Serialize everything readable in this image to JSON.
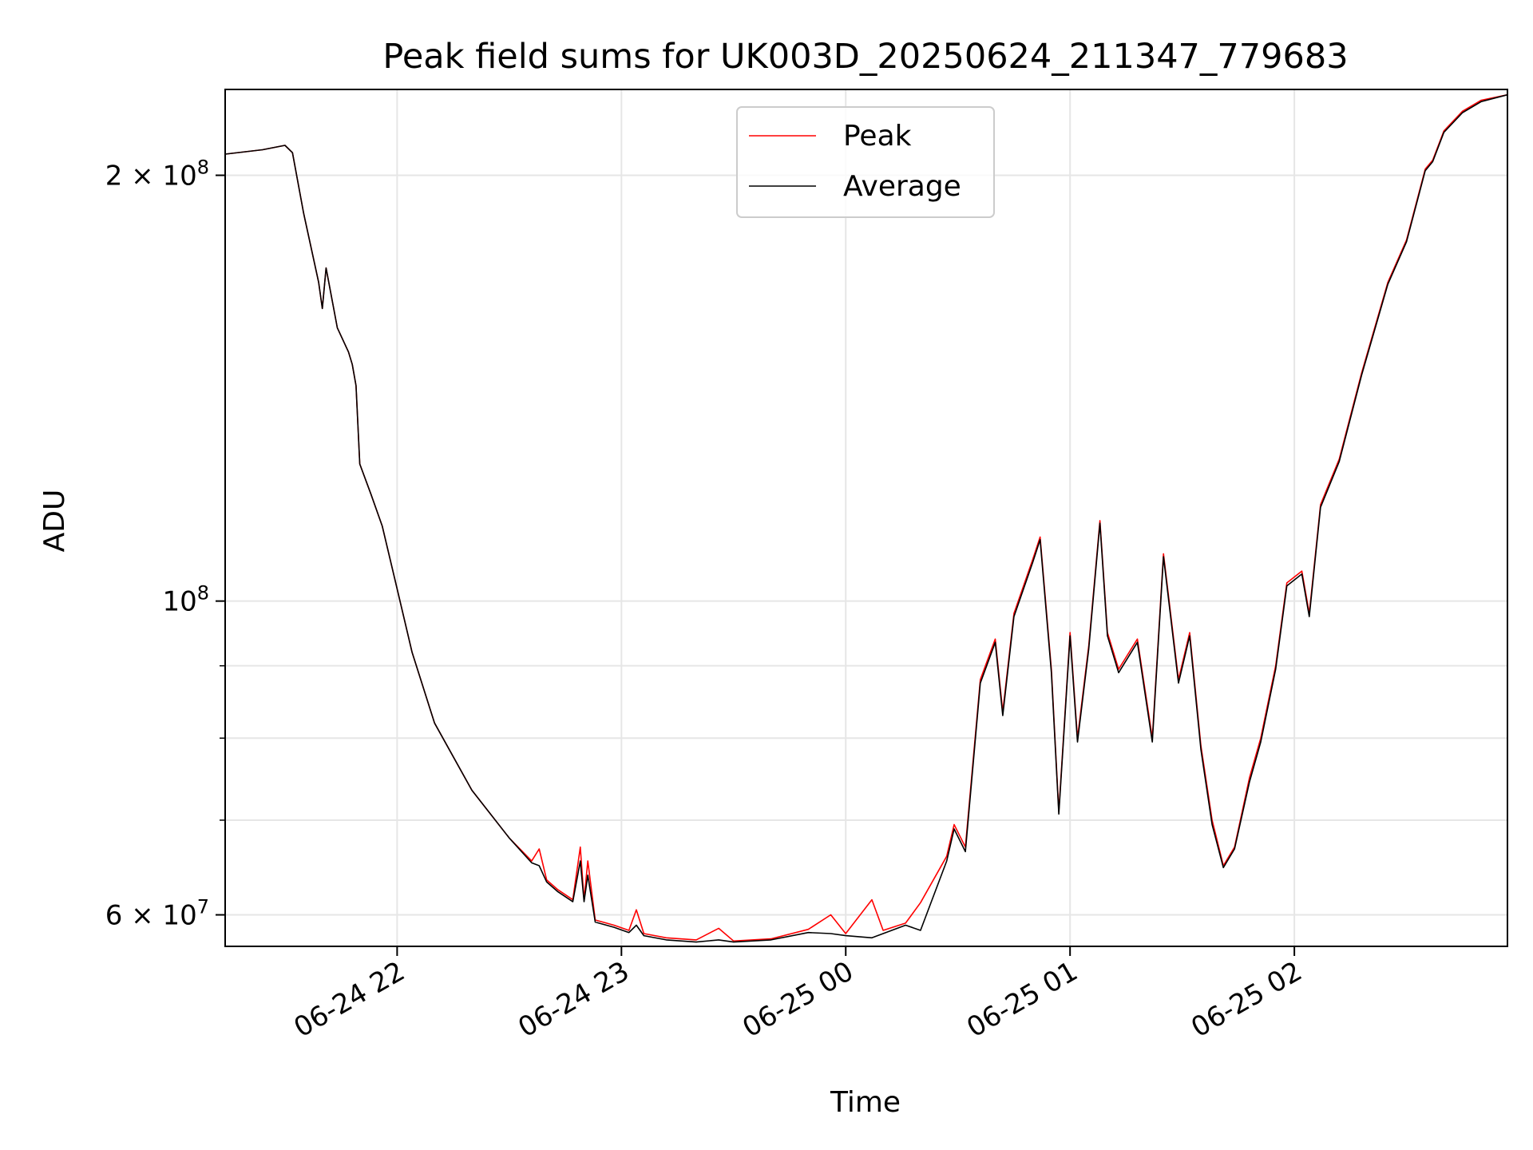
{
  "chart_data": {
    "type": "line",
    "title": "Peak field sums for UK003D_20250624_211347_779683",
    "xlabel": "Time",
    "ylabel": "ADU",
    "yscale": "log",
    "ylim": [
      57000000,
      230000000
    ],
    "xlim": [
      "2025-06-24 21:14",
      "2025-06-25 02:57"
    ],
    "grid": true,
    "legend_position": "top-center",
    "x_ticks": [
      {
        "value": "2025-06-24 22:00",
        "label": "06-24 22"
      },
      {
        "value": "2025-06-24 23:00",
        "label": "06-24 23"
      },
      {
        "value": "2025-06-25 00:00",
        "label": "06-25 00"
      },
      {
        "value": "2025-06-25 01:00",
        "label": "06-25 01"
      },
      {
        "value": "2025-06-25 02:00",
        "label": "06-25 02"
      }
    ],
    "y_ticks": [
      {
        "value": 60000000,
        "base": "6",
        "exp": "7"
      },
      {
        "value": 100000000,
        "base": "",
        "exp": "8"
      },
      {
        "value": 200000000,
        "base": "2",
        "exp": "8"
      }
    ],
    "y_minor_ticks": [
      70000000,
      80000000,
      90000000
    ],
    "series": [
      {
        "name": "Peak",
        "color": "#ff0000",
        "points": [
          [
            "2025-06-24 21:14",
            207000000
          ],
          [
            "2025-06-24 21:24",
            208500000
          ],
          [
            "2025-06-24 21:30",
            210000000
          ],
          [
            "2025-06-24 21:32",
            207500000
          ],
          [
            "2025-06-24 21:35",
            188000000
          ],
          [
            "2025-06-24 21:39",
            168000000
          ],
          [
            "2025-06-24 21:40",
            161000000
          ],
          [
            "2025-06-24 21:41",
            172000000
          ],
          [
            "2025-06-24 21:44",
            156000000
          ],
          [
            "2025-06-24 21:47",
            150000000
          ],
          [
            "2025-06-24 21:48",
            147000000
          ],
          [
            "2025-06-24 21:49",
            142000000
          ],
          [
            "2025-06-24 21:50",
            125000000
          ],
          [
            "2025-06-24 21:53",
            119000000
          ],
          [
            "2025-06-24 21:56",
            113000000
          ],
          [
            "2025-06-24 22:00",
            102000000
          ],
          [
            "2025-06-24 22:04",
            92000000
          ],
          [
            "2025-06-24 22:10",
            82000000
          ],
          [
            "2025-06-24 22:20",
            73500000
          ],
          [
            "2025-06-24 22:30",
            68000000
          ],
          [
            "2025-06-24 22:36",
            65500000
          ],
          [
            "2025-06-24 22:38",
            66800000
          ],
          [
            "2025-06-24 22:40",
            63500000
          ],
          [
            "2025-06-24 22:43",
            62500000
          ],
          [
            "2025-06-24 22:47",
            61500000
          ],
          [
            "2025-06-24 22:49",
            67000000
          ],
          [
            "2025-06-24 22:50",
            61500000
          ],
          [
            "2025-06-24 22:51",
            65500000
          ],
          [
            "2025-06-24 22:53",
            59500000
          ],
          [
            "2025-06-24 22:58",
            59000000
          ],
          [
            "2025-06-24 23:02",
            58500000
          ],
          [
            "2025-06-24 23:04",
            60500000
          ],
          [
            "2025-06-24 23:06",
            58200000
          ],
          [
            "2025-06-24 23:12",
            57800000
          ],
          [
            "2025-06-24 23:20",
            57600000
          ],
          [
            "2025-06-24 23:26",
            58700000
          ],
          [
            "2025-06-24 23:30",
            57500000
          ],
          [
            "2025-06-24 23:40",
            57700000
          ],
          [
            "2025-06-24 23:50",
            58600000
          ],
          [
            "2025-06-24 23:56",
            60000000
          ],
          [
            "2025-06-25 00:00",
            58200000
          ],
          [
            "2025-06-25 00:07",
            61500000
          ],
          [
            "2025-06-25 00:10",
            58500000
          ],
          [
            "2025-06-25 00:16",
            59200000
          ],
          [
            "2025-06-25 00:20",
            61200000
          ],
          [
            "2025-06-25 00:27",
            66000000
          ],
          [
            "2025-06-25 00:29",
            69500000
          ],
          [
            "2025-06-25 00:32",
            67000000
          ],
          [
            "2025-06-25 00:36",
            88000000
          ],
          [
            "2025-06-25 00:40",
            94000000
          ],
          [
            "2025-06-25 00:42",
            83500000
          ],
          [
            "2025-06-25 00:45",
            98000000
          ],
          [
            "2025-06-25 00:50",
            107000000
          ],
          [
            "2025-06-25 00:52",
            111000000
          ],
          [
            "2025-06-25 00:55",
            89500000
          ],
          [
            "2025-06-25 00:57",
            71000000
          ],
          [
            "2025-06-25 01:00",
            95000000
          ],
          [
            "2025-06-25 01:02",
            80000000
          ],
          [
            "2025-06-25 01:05",
            93000000
          ],
          [
            "2025-06-25 01:08",
            114000000
          ],
          [
            "2025-06-25 01:10",
            95000000
          ],
          [
            "2025-06-25 01:13",
            89500000
          ],
          [
            "2025-06-25 01:18",
            94000000
          ],
          [
            "2025-06-25 01:22",
            80000000
          ],
          [
            "2025-06-25 01:25",
            108000000
          ],
          [
            "2025-06-25 01:29",
            88000000
          ],
          [
            "2025-06-25 01:32",
            95000000
          ],
          [
            "2025-06-25 01:35",
            79000000
          ],
          [
            "2025-06-25 01:38",
            70000000
          ],
          [
            "2025-06-25 01:41",
            65000000
          ],
          [
            "2025-06-25 01:44",
            67000000
          ],
          [
            "2025-06-25 01:48",
            75000000
          ],
          [
            "2025-06-25 01:51",
            80000000
          ],
          [
            "2025-06-25 01:55",
            90000000
          ],
          [
            "2025-06-25 01:58",
            103000000
          ],
          [
            "2025-06-25 02:02",
            105000000
          ],
          [
            "2025-06-25 02:04",
            98000000
          ],
          [
            "2025-06-25 02:07",
            117000000
          ],
          [
            "2025-06-25 02:12",
            126000000
          ],
          [
            "2025-06-25 02:18",
            145000000
          ],
          [
            "2025-06-25 02:25",
            168000000
          ],
          [
            "2025-06-25 02:30",
            180000000
          ],
          [
            "2025-06-25 02:35",
            202000000
          ],
          [
            "2025-06-25 02:37",
            205000000
          ],
          [
            "2025-06-25 02:40",
            215000000
          ],
          [
            "2025-06-25 02:45",
            222000000
          ],
          [
            "2025-06-25 02:50",
            226000000
          ],
          [
            "2025-06-25 02:57",
            228000000
          ]
        ]
      },
      {
        "name": "Average",
        "color": "#000000",
        "points": [
          [
            "2025-06-24 21:14",
            207000000
          ],
          [
            "2025-06-24 21:24",
            208500000
          ],
          [
            "2025-06-24 21:30",
            210000000
          ],
          [
            "2025-06-24 21:32",
            207500000
          ],
          [
            "2025-06-24 21:35",
            188000000
          ],
          [
            "2025-06-24 21:39",
            168000000
          ],
          [
            "2025-06-24 21:40",
            161000000
          ],
          [
            "2025-06-24 21:41",
            172000000
          ],
          [
            "2025-06-24 21:44",
            156000000
          ],
          [
            "2025-06-24 21:47",
            150000000
          ],
          [
            "2025-06-24 21:48",
            147000000
          ],
          [
            "2025-06-24 21:49",
            142000000
          ],
          [
            "2025-06-24 21:50",
            125000000
          ],
          [
            "2025-06-24 21:53",
            119000000
          ],
          [
            "2025-06-24 21:56",
            113000000
          ],
          [
            "2025-06-24 22:00",
            102000000
          ],
          [
            "2025-06-24 22:04",
            92000000
          ],
          [
            "2025-06-24 22:10",
            82000000
          ],
          [
            "2025-06-24 22:20",
            73500000
          ],
          [
            "2025-06-24 22:30",
            68000000
          ],
          [
            "2025-06-24 22:36",
            65300000
          ],
          [
            "2025-06-24 22:38",
            65000000
          ],
          [
            "2025-06-24 22:40",
            63300000
          ],
          [
            "2025-06-24 22:43",
            62300000
          ],
          [
            "2025-06-24 22:47",
            61300000
          ],
          [
            "2025-06-24 22:49",
            65500000
          ],
          [
            "2025-06-24 22:50",
            61300000
          ],
          [
            "2025-06-24 22:51",
            64000000
          ],
          [
            "2025-06-24 22:53",
            59300000
          ],
          [
            "2025-06-24 22:58",
            58800000
          ],
          [
            "2025-06-24 23:02",
            58300000
          ],
          [
            "2025-06-24 23:04",
            59000000
          ],
          [
            "2025-06-24 23:06",
            58000000
          ],
          [
            "2025-06-24 23:12",
            57600000
          ],
          [
            "2025-06-24 23:20",
            57400000
          ],
          [
            "2025-06-24 23:26",
            57600000
          ],
          [
            "2025-06-24 23:30",
            57400000
          ],
          [
            "2025-06-24 23:40",
            57600000
          ],
          [
            "2025-06-24 23:50",
            58300000
          ],
          [
            "2025-06-24 23:56",
            58200000
          ],
          [
            "2025-06-25 00:00",
            58000000
          ],
          [
            "2025-06-25 00:07",
            57800000
          ],
          [
            "2025-06-25 00:10",
            58200000
          ],
          [
            "2025-06-25 00:16",
            59000000
          ],
          [
            "2025-06-25 00:20",
            58500000
          ],
          [
            "2025-06-25 00:27",
            65500000
          ],
          [
            "2025-06-25 00:29",
            69000000
          ],
          [
            "2025-06-25 00:32",
            66500000
          ],
          [
            "2025-06-25 00:36",
            87500000
          ],
          [
            "2025-06-25 00:40",
            93500000
          ],
          [
            "2025-06-25 00:42",
            83000000
          ],
          [
            "2025-06-25 00:45",
            97500000
          ],
          [
            "2025-06-25 00:50",
            106500000
          ],
          [
            "2025-06-25 00:52",
            110500000
          ],
          [
            "2025-06-25 00:55",
            89000000
          ],
          [
            "2025-06-25 00:57",
            70700000
          ],
          [
            "2025-06-25 01:00",
            94500000
          ],
          [
            "2025-06-25 01:02",
            79500000
          ],
          [
            "2025-06-25 01:05",
            92500000
          ],
          [
            "2025-06-25 01:08",
            113500000
          ],
          [
            "2025-06-25 01:10",
            94500000
          ],
          [
            "2025-06-25 01:13",
            89000000
          ],
          [
            "2025-06-25 01:18",
            93500000
          ],
          [
            "2025-06-25 01:22",
            79500000
          ],
          [
            "2025-06-25 01:25",
            107500000
          ],
          [
            "2025-06-25 01:29",
            87500000
          ],
          [
            "2025-06-25 01:32",
            94500000
          ],
          [
            "2025-06-25 01:35",
            78500000
          ],
          [
            "2025-06-25 01:38",
            69500000
          ],
          [
            "2025-06-25 01:41",
            64800000
          ],
          [
            "2025-06-25 01:44",
            66800000
          ],
          [
            "2025-06-25 01:48",
            74500000
          ],
          [
            "2025-06-25 01:51",
            79500000
          ],
          [
            "2025-06-25 01:55",
            89500000
          ],
          [
            "2025-06-25 01:58",
            102500000
          ],
          [
            "2025-06-25 02:02",
            104500000
          ],
          [
            "2025-06-25 02:04",
            97500000
          ],
          [
            "2025-06-25 02:07",
            116500000
          ],
          [
            "2025-06-25 02:12",
            125500000
          ],
          [
            "2025-06-25 02:18",
            144500000
          ],
          [
            "2025-06-25 02:25",
            167500000
          ],
          [
            "2025-06-25 02:30",
            179500000
          ],
          [
            "2025-06-25 02:35",
            201500000
          ],
          [
            "2025-06-25 02:37",
            204500000
          ],
          [
            "2025-06-25 02:40",
            214500000
          ],
          [
            "2025-06-25 02:45",
            221500000
          ],
          [
            "2025-06-25 02:50",
            225500000
          ],
          [
            "2025-06-25 02:57",
            228000000
          ]
        ]
      }
    ]
  }
}
